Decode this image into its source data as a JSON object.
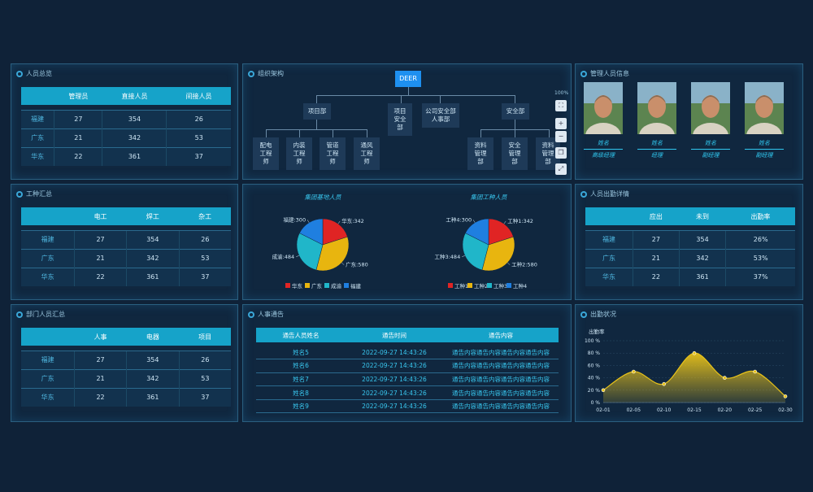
{
  "panels": {
    "staff_overview": {
      "title": "人员总览",
      "headers": [
        "",
        "管理员",
        "直接人员",
        "间接人员"
      ],
      "rows": [
        [
          "福建",
          "27",
          "354",
          "26"
        ],
        [
          "广东",
          "21",
          "342",
          "53"
        ],
        [
          "华东",
          "22",
          "361",
          "37"
        ]
      ]
    },
    "org_chart": {
      "title": "组织架构",
      "root": "DEER",
      "zoom": "100%",
      "level1": [
        "项目部",
        "项目安全部",
        "公司安全部人事部",
        "安全部"
      ],
      "level2_left": [
        "配电工程师",
        "内装工程师",
        "管道工程师",
        "通风工程师"
      ],
      "level2_right": [
        "资料管理部",
        "安全管理部",
        "资料管理部"
      ],
      "controls": {
        "fit": "⛶",
        "plus": "+",
        "minus": "−",
        "copy": "❐",
        "expand": "⤢"
      }
    },
    "managers": {
      "title": "管理人员信息",
      "people": [
        {
          "name": "姓名",
          "role": "高级经理"
        },
        {
          "name": "姓名",
          "role": "经理"
        },
        {
          "name": "姓名",
          "role": "副经理"
        },
        {
          "name": "姓名",
          "role": "副经理"
        }
      ]
    },
    "trades": {
      "title": "工种汇总",
      "headers": [
        "",
        "电工",
        "焊工",
        "杂工"
      ],
      "rows": [
        [
          "福建",
          "27",
          "354",
          "26"
        ],
        [
          "广东",
          "21",
          "342",
          "53"
        ],
        [
          "华东",
          "22",
          "361",
          "37"
        ]
      ]
    },
    "pies": {
      "left": {
        "title": "集团基地人员",
        "labels": [
          "华东:342",
          "广东:580",
          "成渝:484",
          "福建:300"
        ],
        "legend": [
          "华东",
          "广东",
          "成渝",
          "福建"
        ]
      },
      "right": {
        "title": "集团工种人员",
        "labels": [
          "工种1:342",
          "工种2:580",
          "工种3:484",
          "工种4:300"
        ],
        "legend": [
          "工种1",
          "工种2",
          "工种3",
          "工种4"
        ]
      }
    },
    "attendance_detail": {
      "title": "人员出勤详情",
      "headers": [
        "",
        "应出",
        "未到",
        "出勤率"
      ],
      "rows": [
        [
          "福建",
          "27",
          "354",
          "26%"
        ],
        [
          "广东",
          "21",
          "342",
          "53%"
        ],
        [
          "华东",
          "22",
          "361",
          "37%"
        ]
      ]
    },
    "dept_summary": {
      "title": "部门人员汇总",
      "headers": [
        "",
        "人事",
        "电器",
        "项目"
      ],
      "rows": [
        [
          "福建",
          "27",
          "354",
          "26"
        ],
        [
          "广东",
          "21",
          "342",
          "53"
        ],
        [
          "华东",
          "22",
          "361",
          "37"
        ]
      ]
    },
    "notices": {
      "title": "人事通告",
      "headers": [
        "通告人员姓名",
        "通告时间",
        "通告内容"
      ],
      "rows": [
        [
          "姓名5",
          "2022-09-27 14:43:26",
          "通告内容通告内容通告内容通告内容"
        ],
        [
          "姓名6",
          "2022-09-27 14:43:26",
          "通告内容通告内容通告内容通告内容"
        ],
        [
          "姓名7",
          "2022-09-27 14:43:26",
          "通告内容通告内容通告内容通告内容"
        ],
        [
          "姓名8",
          "2022-09-27 14:43:26",
          "通告内容通告内容通告内容通告内容"
        ],
        [
          "姓名9",
          "2022-09-27 14:43:26",
          "通告内容通告内容通告内容通告内容"
        ]
      ]
    },
    "attendance_chart": {
      "title": "出勤状况"
    }
  },
  "chart_data": [
    {
      "type": "pie",
      "title": "集团基地人员",
      "categories": [
        "华东",
        "广东",
        "成渝",
        "福建"
      ],
      "values": [
        342,
        580,
        484,
        300
      ],
      "colors": [
        "#e02424",
        "#e8b50f",
        "#20b6c9",
        "#1f7fe0"
      ]
    },
    {
      "type": "pie",
      "title": "集团工种人员",
      "categories": [
        "工种1",
        "工种2",
        "工种3",
        "工种4"
      ],
      "values": [
        342,
        580,
        484,
        300
      ],
      "colors": [
        "#e02424",
        "#e8b50f",
        "#20b6c9",
        "#1f7fe0"
      ]
    },
    {
      "type": "area",
      "title": "",
      "ylabel": "出勤率",
      "x": [
        "02-01",
        "02-05",
        "02-10",
        "02-15",
        "02-20",
        "02-25",
        "02-30"
      ],
      "values": [
        20,
        50,
        30,
        80,
        40,
        50,
        10
      ],
      "yticks": [
        "0 %",
        "20 %",
        "40 %",
        "60 %",
        "80 %",
        "100 %"
      ],
      "ylim": [
        0,
        100
      ],
      "grid": true,
      "color": "#e8c21a"
    }
  ]
}
